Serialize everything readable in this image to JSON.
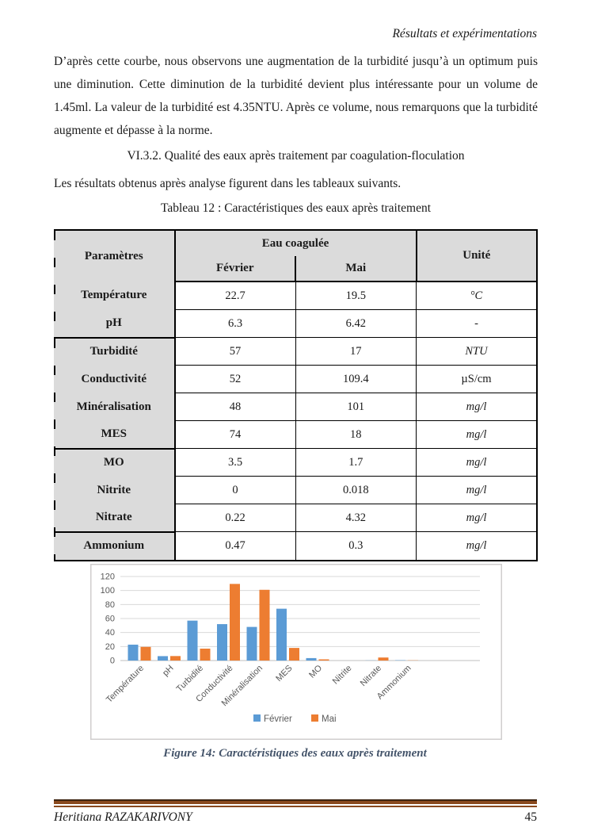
{
  "page": {
    "running_header": "Résultats et expérimentations",
    "paragraph": "D’après cette courbe, nous observons une augmentation de la turbidité jusqu’à un optimum puis une diminution. Cette diminution de la turbidité devient plus intéressante pour un volume de 1.45ml. La valeur de la turbidité est 4.35NTU. Après ce volume, nous remarquons que la turbidité augmente et dépasse à la norme.",
    "section_heading": "VI.3.2. Qualité des eaux après traitement par coagulation-floculation",
    "intro_sentence": "Les résultats obtenus après analyse figurent dans les tableaux suivants.",
    "table_title": "Tableau 12 : Caractéristiques des eaux après traitement",
    "figure_caption": "Figure 14: Caractéristiques des eaux après traitement",
    "footer_author": "Heritiana RAZAKARIVONY",
    "page_number": "45"
  },
  "table": {
    "header": {
      "param": "Paramètres",
      "group": "Eau coagulée",
      "col_fevrier": "Février",
      "col_mai": "Mai",
      "unit": "Unité"
    },
    "rows": [
      {
        "param": "Température",
        "fevrier": "22.7",
        "mai": "19.5",
        "unit": "°C",
        "unit_italic": true
      },
      {
        "param": "pH",
        "fevrier": "6.3",
        "mai": "6.42",
        "unit": "-",
        "unit_italic": false
      },
      {
        "param": "Turbidité",
        "fevrier": "57",
        "mai": "17",
        "unit": "NTU",
        "unit_italic": true
      },
      {
        "param": "Conductivité",
        "fevrier": "52",
        "mai": "109.4",
        "unit": "µS/cm",
        "unit_italic": false
      },
      {
        "param": "Minéralisation",
        "fevrier": "48",
        "mai": "101",
        "unit": "mg/l",
        "unit_italic": true
      },
      {
        "param": "MES",
        "fevrier": "74",
        "mai": "18",
        "unit": "mg/l",
        "unit_italic": true
      },
      {
        "param": "MO",
        "fevrier": "3.5",
        "mai": "1.7",
        "unit": "mg/l",
        "unit_italic": true
      },
      {
        "param": "Nitrite",
        "fevrier": "0",
        "mai": "0.018",
        "unit": "mg/l",
        "unit_italic": true
      },
      {
        "param": "Nitrate",
        "fevrier": "0.22",
        "mai": "4.32",
        "unit": "mg/l",
        "unit_italic": true
      },
      {
        "param": "Ammonium",
        "fevrier": "0.47",
        "mai": "0.3",
        "unit": "mg/l",
        "unit_italic": true
      }
    ],
    "group_end_rows": [
      1,
      5,
      8
    ]
  },
  "chart_data": {
    "type": "bar",
    "categories": [
      "Température",
      "pH",
      "Turbidité",
      "Conductivité",
      "Minéralisation",
      "MES",
      "MO",
      "Nitrite",
      "Nitrate",
      "Ammonium"
    ],
    "series": [
      {
        "name": "Février",
        "color": "#5b9bd5",
        "values": [
          22.7,
          6.3,
          57,
          52,
          48,
          74,
          3.5,
          0,
          0.22,
          0.47
        ]
      },
      {
        "name": "Mai",
        "color": "#ed7d31",
        "values": [
          19.5,
          6.42,
          17,
          109.4,
          101,
          18,
          1.7,
          0.018,
          4.32,
          0.3
        ]
      }
    ],
    "ylim": [
      0,
      120
    ],
    "yticks": [
      0,
      20,
      40,
      60,
      80,
      100,
      120
    ],
    "grid": true,
    "legend_position": "bottom",
    "colors": {
      "gridline": "#d9d9d9",
      "axis_line": "#bfbfbf",
      "tick_label": "#595959",
      "frame": "#d0cece"
    }
  }
}
